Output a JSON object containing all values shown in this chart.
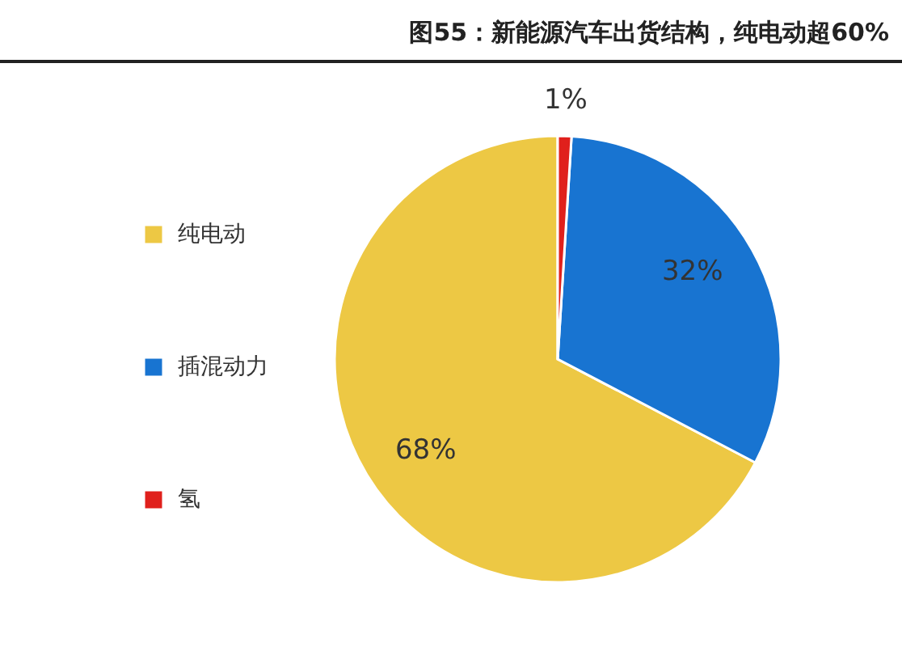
{
  "chart_data": {
    "type": "pie",
    "title": "图55：新能源汽车出货结构，纯电动超60%",
    "categories": [
      "纯电动",
      "插混动力",
      "氢"
    ],
    "values": [
      68,
      32,
      1
    ],
    "colors": [
      "#edc844",
      "#1874d1",
      "#e0201c"
    ],
    "value_labels": [
      "68%",
      "32%",
      "1%"
    ],
    "legend": "left"
  }
}
